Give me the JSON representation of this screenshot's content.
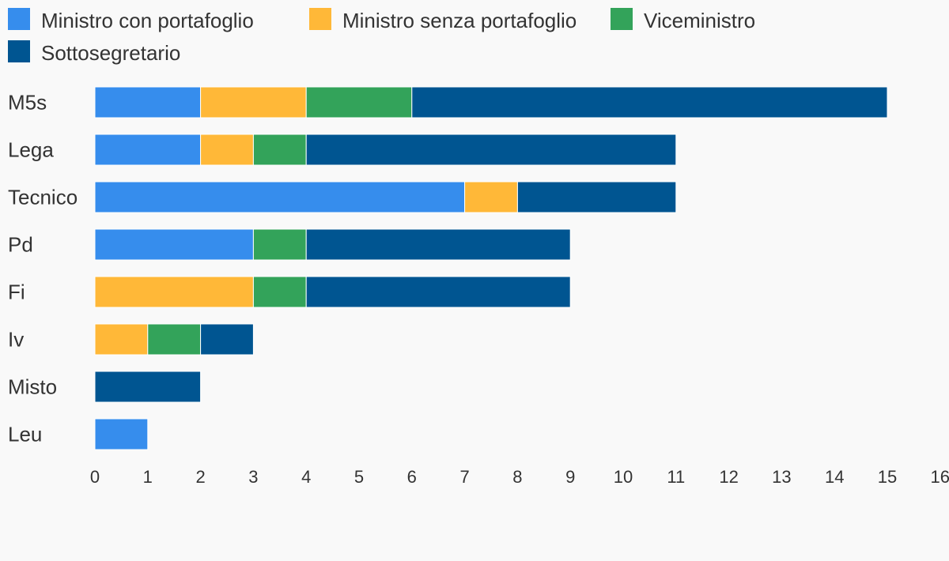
{
  "chart_data": {
    "type": "bar",
    "orientation": "horizontal",
    "stacked": true,
    "categories": [
      "M5s",
      "Lega",
      "Tecnico",
      "Pd",
      "Fi",
      "Iv",
      "Misto",
      "Leu"
    ],
    "series": [
      {
        "name": "Ministro con portafoglio",
        "color": "#368ded",
        "values": [
          2,
          2,
          7,
          3,
          0,
          0,
          0,
          1
        ]
      },
      {
        "name": "Ministro senza portafoglio",
        "color": "#ffb838",
        "values": [
          2,
          1,
          1,
          0,
          3,
          1,
          0,
          0
        ]
      },
      {
        "name": "Viceministro",
        "color": "#33a35a",
        "values": [
          2,
          1,
          0,
          1,
          1,
          1,
          0,
          0
        ]
      },
      {
        "name": "Sottosegretario",
        "color": "#005591",
        "values": [
          9,
          7,
          3,
          5,
          5,
          1,
          2,
          0
        ]
      }
    ],
    "xlim": [
      0,
      16
    ],
    "xticks": [
      "0",
      "1",
      "2",
      "3",
      "4",
      "5",
      "6",
      "7",
      "8",
      "9",
      "10",
      "11",
      "12",
      "13",
      "14",
      "15",
      "16"
    ],
    "grid": false,
    "legend_position": "top"
  }
}
